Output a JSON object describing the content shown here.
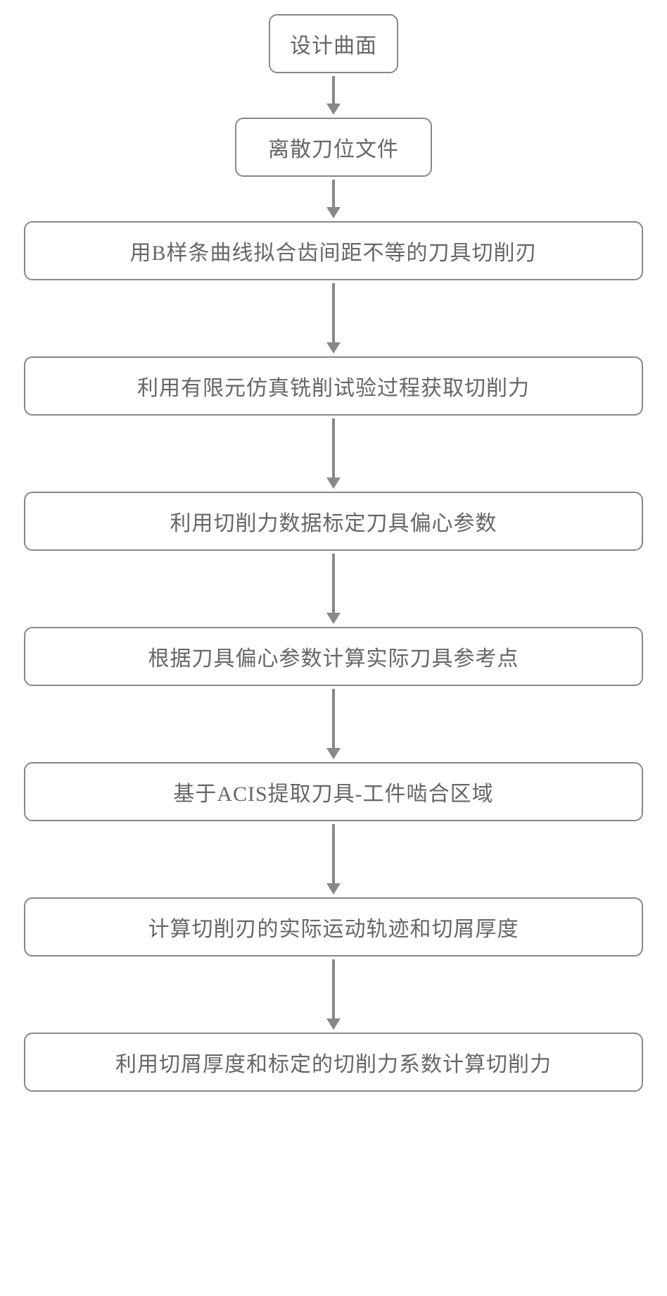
{
  "flowchart": {
    "type": "flowchart",
    "direction": "vertical",
    "background_color": "#ffffff",
    "box_border_color": "#888888",
    "box_border_width": 2,
    "box_border_radius": 12,
    "text_color": "#666666",
    "font_size": 30,
    "arrow_color": "#888888",
    "arrow_line_width": 4,
    "nodes": [
      {
        "id": "n1",
        "label": "设计曲面",
        "width": "small"
      },
      {
        "id": "n2",
        "label": "离散刀位文件",
        "width": "medium"
      },
      {
        "id": "n3",
        "label": "用B样条曲线拟合齿间距不等的刀具切削刃",
        "width": "wide"
      },
      {
        "id": "n4",
        "label": "利用有限元仿真铣削试验过程获取切削力",
        "width": "wide"
      },
      {
        "id": "n5",
        "label": "利用切削力数据标定刀具偏心参数",
        "width": "wide"
      },
      {
        "id": "n6",
        "label": "根据刀具偏心参数计算实际刀具参考点",
        "width": "wide"
      },
      {
        "id": "n7",
        "label": "基于ACIS提取刀具-工件啮合区域",
        "width": "wide"
      },
      {
        "id": "n8",
        "label": "计算切削刃的实际运动轨迹和切屑厚度",
        "width": "wide"
      },
      {
        "id": "n9",
        "label": "利用切屑厚度和标定的切削力系数计算切削力",
        "width": "wide"
      }
    ],
    "edges": [
      {
        "from": "n1",
        "to": "n2",
        "length": "short"
      },
      {
        "from": "n2",
        "to": "n3",
        "length": "short"
      },
      {
        "from": "n3",
        "to": "n4",
        "length": "long"
      },
      {
        "from": "n4",
        "to": "n5",
        "length": "long"
      },
      {
        "from": "n5",
        "to": "n6",
        "length": "long"
      },
      {
        "from": "n6",
        "to": "n7",
        "length": "long"
      },
      {
        "from": "n7",
        "to": "n8",
        "length": "long"
      },
      {
        "from": "n8",
        "to": "n9",
        "length": "long"
      }
    ]
  }
}
